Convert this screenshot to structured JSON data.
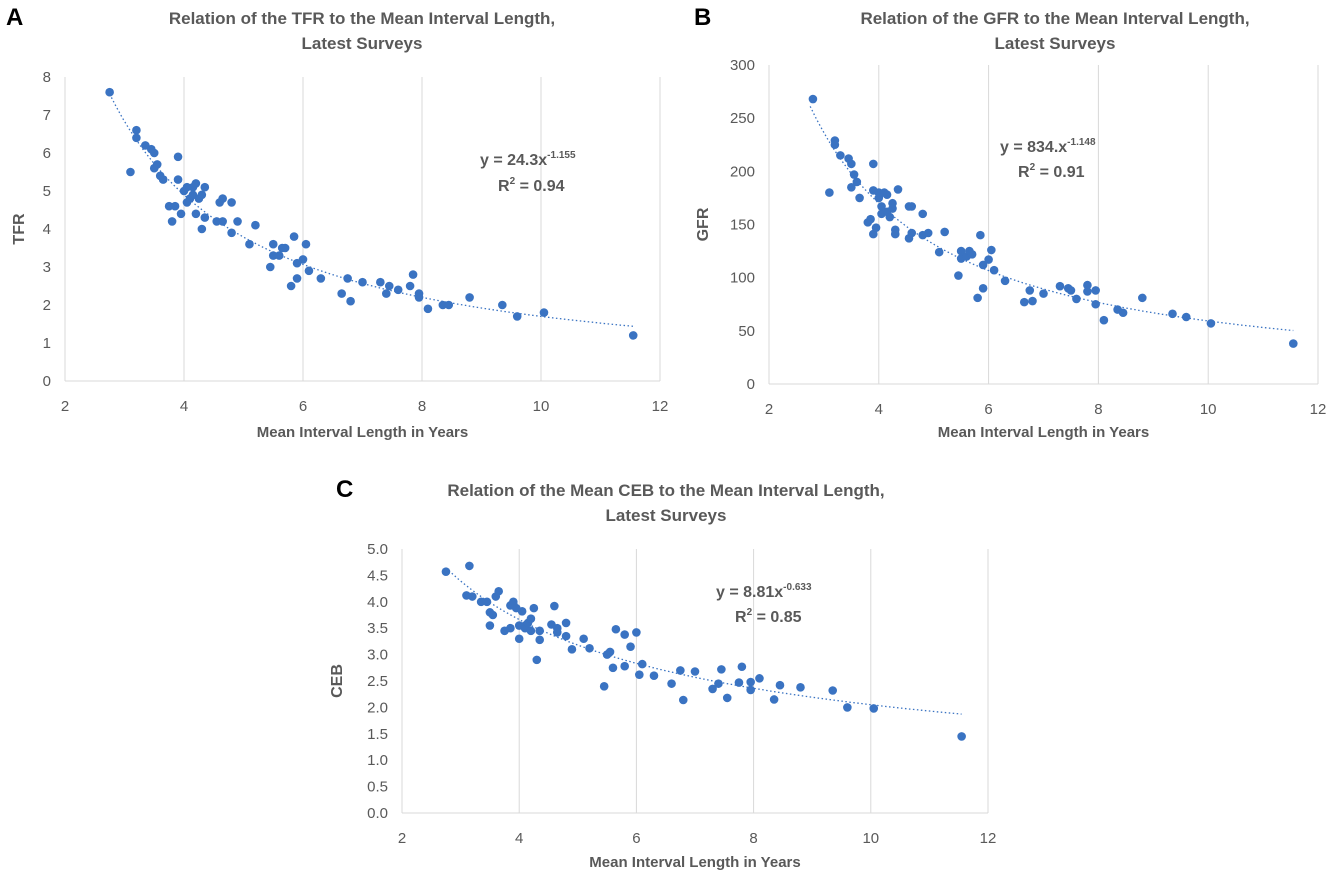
{
  "colors": {
    "marker": "#3a73c2",
    "grid": "#d9d9d9",
    "text": "#595959",
    "letter": "#000000"
  },
  "panels": [
    {
      "letter": "A",
      "title_line1": "Relation of the TFR to the Mean Interval Length,",
      "title_line2": "Latest Surveys",
      "eq_main": "y = 24.3x",
      "eq_exp": "-1.155",
      "r2_main": "R",
      "r2_sup": "2",
      "r2_rest": " = 0.94"
    },
    {
      "letter": "B",
      "title_line1": "Relation of the GFR to the Mean Interval Length,",
      "title_line2": "Latest Surveys",
      "eq_main": "y = 834.x",
      "eq_exp": "-1.148",
      "r2_main": "R",
      "r2_sup": "2",
      "r2_rest": " = 0.91"
    },
    {
      "letter": "C",
      "title_line1": "Relation of the Mean CEB to the Mean Interval Length,",
      "title_line2": "Latest Surveys",
      "eq_main": "y = 8.81x",
      "eq_exp": "-0.633",
      "r2_main": "R",
      "r2_sup": "2",
      "r2_rest": " = 0.85"
    }
  ],
  "chart_data": [
    {
      "type": "scatter",
      "title": "Relation of the TFR to the Mean Interval Length, Latest Surveys",
      "xlabel": "Mean Interval Length in Years",
      "ylabel": "TFR",
      "xlim": [
        2,
        12
      ],
      "ylim": [
        0,
        8
      ],
      "xticks": [
        2,
        4,
        6,
        8,
        10,
        12
      ],
      "yticks": [
        0,
        1,
        2,
        3,
        4,
        5,
        6,
        7,
        8
      ],
      "ytick_labels": [
        "0",
        "1",
        "2",
        "3",
        "4",
        "5",
        "6",
        "7",
        "8"
      ],
      "grid": "vertical",
      "trendline": {
        "type": "power",
        "a": 24.3,
        "b": -1.155,
        "x_range": [
          2.75,
          11.55
        ],
        "equation": "y = 24.3x-1.155",
        "r2": "R2 = 0.94"
      },
      "points": [
        [
          2.75,
          7.6
        ],
        [
          3.1,
          5.5
        ],
        [
          3.2,
          6.4
        ],
        [
          3.2,
          6.6
        ],
        [
          3.35,
          6.2
        ],
        [
          3.45,
          6.1
        ],
        [
          3.5,
          6.0
        ],
        [
          3.5,
          5.6
        ],
        [
          3.55,
          5.7
        ],
        [
          3.6,
          5.4
        ],
        [
          3.65,
          5.3
        ],
        [
          3.75,
          4.6
        ],
        [
          3.8,
          4.2
        ],
        [
          3.85,
          4.6
        ],
        [
          3.9,
          5.3
        ],
        [
          3.9,
          5.9
        ],
        [
          3.95,
          4.4
        ],
        [
          4.0,
          5.0
        ],
        [
          4.05,
          4.7
        ],
        [
          4.05,
          5.1
        ],
        [
          4.1,
          4.8
        ],
        [
          4.15,
          4.9
        ],
        [
          4.15,
          5.1
        ],
        [
          4.2,
          4.4
        ],
        [
          4.2,
          5.2
        ],
        [
          4.25,
          4.8
        ],
        [
          4.3,
          4.0
        ],
        [
          4.3,
          4.9
        ],
        [
          4.35,
          4.3
        ],
        [
          4.35,
          5.1
        ],
        [
          4.55,
          4.2
        ],
        [
          4.6,
          4.7
        ],
        [
          4.65,
          4.2
        ],
        [
          4.65,
          4.8
        ],
        [
          4.8,
          3.9
        ],
        [
          4.8,
          4.7
        ],
        [
          4.9,
          4.2
        ],
        [
          5.1,
          3.6
        ],
        [
          5.2,
          4.1
        ],
        [
          5.45,
          3.0
        ],
        [
          5.5,
          3.3
        ],
        [
          5.5,
          3.6
        ],
        [
          5.6,
          3.3
        ],
        [
          5.65,
          3.5
        ],
        [
          5.7,
          3.5
        ],
        [
          5.8,
          2.5
        ],
        [
          5.85,
          3.8
        ],
        [
          5.9,
          2.7
        ],
        [
          5.9,
          3.1
        ],
        [
          6.0,
          3.2
        ],
        [
          6.05,
          3.6
        ],
        [
          6.1,
          2.9
        ],
        [
          6.3,
          2.7
        ],
        [
          6.65,
          2.3
        ],
        [
          6.75,
          2.7
        ],
        [
          6.8,
          2.1
        ],
        [
          7.0,
          2.6
        ],
        [
          7.3,
          2.6
        ],
        [
          7.4,
          2.3
        ],
        [
          7.45,
          2.5
        ],
        [
          7.6,
          2.4
        ],
        [
          7.8,
          2.5
        ],
        [
          7.85,
          2.8
        ],
        [
          7.95,
          2.3
        ],
        [
          7.95,
          2.2
        ],
        [
          8.1,
          1.9
        ],
        [
          8.35,
          2.0
        ],
        [
          8.45,
          2.0
        ],
        [
          8.8,
          2.2
        ],
        [
          9.35,
          2.0
        ],
        [
          9.6,
          1.7
        ],
        [
          10.05,
          1.8
        ],
        [
          11.55,
          1.2
        ]
      ]
    },
    {
      "type": "scatter",
      "title": "Relation of the GFR to the Mean Interval Length, Latest Surveys",
      "xlabel": "Mean Interval Length in Years",
      "ylabel": "GFR",
      "xlim": [
        2,
        12
      ],
      "ylim": [
        0,
        300
      ],
      "xticks": [
        2,
        4,
        6,
        8,
        10,
        12
      ],
      "yticks": [
        0,
        50,
        100,
        150,
        200,
        250,
        300
      ],
      "ytick_labels": [
        "0",
        "50",
        "100",
        "150",
        "200",
        "250",
        "300"
      ],
      "grid": "vertical",
      "trendline": {
        "type": "power",
        "a": 834,
        "b": -1.148,
        "x_range": [
          2.75,
          11.55
        ],
        "equation": "y = 834.x-1.148",
        "r2": "R2 = 0.91"
      },
      "points": [
        [
          2.8,
          268
        ],
        [
          3.1,
          180
        ],
        [
          3.2,
          229
        ],
        [
          3.2,
          225
        ],
        [
          3.3,
          215
        ],
        [
          3.45,
          212
        ],
        [
          3.5,
          185
        ],
        [
          3.5,
          207
        ],
        [
          3.55,
          197
        ],
        [
          3.6,
          190
        ],
        [
          3.65,
          175
        ],
        [
          3.8,
          152
        ],
        [
          3.85,
          155
        ],
        [
          3.9,
          141
        ],
        [
          3.9,
          182
        ],
        [
          3.9,
          207
        ],
        [
          3.95,
          147
        ],
        [
          4.0,
          175
        ],
        [
          4.0,
          180
        ],
        [
          4.05,
          160
        ],
        [
          4.05,
          167
        ],
        [
          4.1,
          180
        ],
        [
          4.15,
          162
        ],
        [
          4.15,
          178
        ],
        [
          4.2,
          157
        ],
        [
          4.25,
          165
        ],
        [
          4.25,
          170
        ],
        [
          4.3,
          145
        ],
        [
          4.3,
          141
        ],
        [
          4.35,
          183
        ],
        [
          4.55,
          137
        ],
        [
          4.55,
          167
        ],
        [
          4.6,
          167
        ],
        [
          4.6,
          142
        ],
        [
          4.8,
          140
        ],
        [
          4.8,
          160
        ],
        [
          4.9,
          142
        ],
        [
          5.1,
          124
        ],
        [
          5.2,
          143
        ],
        [
          5.45,
          102
        ],
        [
          5.5,
          118
        ],
        [
          5.5,
          125
        ],
        [
          5.6,
          120
        ],
        [
          5.65,
          125
        ],
        [
          5.7,
          122
        ],
        [
          5.8,
          81
        ],
        [
          5.85,
          140
        ],
        [
          5.9,
          90
        ],
        [
          5.9,
          112
        ],
        [
          6.0,
          117
        ],
        [
          6.05,
          126
        ],
        [
          6.1,
          107
        ],
        [
          6.3,
          97
        ],
        [
          6.65,
          77
        ],
        [
          6.75,
          88
        ],
        [
          6.8,
          78
        ],
        [
          7.0,
          85
        ],
        [
          7.3,
          92
        ],
        [
          7.45,
          90
        ],
        [
          7.5,
          88
        ],
        [
          7.6,
          80
        ],
        [
          7.8,
          87
        ],
        [
          7.8,
          93
        ],
        [
          7.95,
          75
        ],
        [
          7.95,
          88
        ],
        [
          8.1,
          60
        ],
        [
          8.35,
          70
        ],
        [
          8.45,
          67
        ],
        [
          8.8,
          81
        ],
        [
          9.35,
          66
        ],
        [
          9.6,
          63
        ],
        [
          10.05,
          57
        ],
        [
          11.55,
          38
        ]
      ]
    },
    {
      "type": "scatter",
      "title": "Relation of the Mean CEB to the Mean Interval Length, Latest Surveys",
      "xlabel": "Mean Interval Length in Years",
      "ylabel": "CEB",
      "xlim": [
        2,
        12
      ],
      "ylim": [
        0,
        5
      ],
      "xticks": [
        2,
        4,
        6,
        8,
        10,
        12
      ],
      "yticks": [
        0,
        0.5,
        1,
        1.5,
        2,
        2.5,
        3,
        3.5,
        4,
        4.5,
        5
      ],
      "ytick_labels": [
        "0.0",
        "0.5",
        "1.0",
        "1.5",
        "2.0",
        "2.5",
        "3.0",
        "3.5",
        "4.0",
        "4.5",
        "5.0"
      ],
      "grid": "vertical",
      "trendline": {
        "type": "power",
        "a": 8.81,
        "b": -0.633,
        "x_range": [
          2.75,
          11.55
        ],
        "equation": "y = 8.81x-0.633",
        "r2": "R2 = 0.85"
      },
      "points": [
        [
          2.75,
          4.57
        ],
        [
          3.1,
          4.12
        ],
        [
          3.15,
          4.68
        ],
        [
          3.2,
          4.1
        ],
        [
          3.35,
          4.0
        ],
        [
          3.45,
          4.0
        ],
        [
          3.5,
          3.55
        ],
        [
          3.5,
          3.8
        ],
        [
          3.55,
          3.75
        ],
        [
          3.6,
          4.1
        ],
        [
          3.65,
          4.2
        ],
        [
          3.75,
          3.45
        ],
        [
          3.85,
          3.93
        ],
        [
          3.85,
          3.5
        ],
        [
          3.9,
          4.0
        ],
        [
          3.9,
          3.95
        ],
        [
          3.95,
          3.88
        ],
        [
          4.0,
          3.3
        ],
        [
          4.0,
          3.55
        ],
        [
          4.05,
          3.82
        ],
        [
          4.1,
          3.55
        ],
        [
          4.1,
          3.5
        ],
        [
          4.15,
          3.6
        ],
        [
          4.2,
          3.45
        ],
        [
          4.2,
          3.68
        ],
        [
          4.25,
          3.88
        ],
        [
          4.3,
          2.9
        ],
        [
          4.35,
          3.28
        ],
        [
          4.35,
          3.45
        ],
        [
          4.55,
          3.57
        ],
        [
          4.6,
          3.92
        ],
        [
          4.65,
          3.42
        ],
        [
          4.65,
          3.5
        ],
        [
          4.8,
          3.6
        ],
        [
          4.8,
          3.35
        ],
        [
          4.9,
          3.1
        ],
        [
          5.1,
          3.3
        ],
        [
          5.2,
          3.12
        ],
        [
          5.45,
          2.4
        ],
        [
          5.5,
          3.0
        ],
        [
          5.55,
          3.05
        ],
        [
          5.6,
          2.75
        ],
        [
          5.65,
          3.48
        ],
        [
          5.8,
          3.38
        ],
        [
          5.8,
          2.78
        ],
        [
          5.9,
          3.15
        ],
        [
          6.0,
          3.42
        ],
        [
          6.05,
          2.62
        ],
        [
          6.1,
          2.82
        ],
        [
          6.3,
          2.6
        ],
        [
          6.6,
          2.45
        ],
        [
          6.75,
          2.7
        ],
        [
          6.8,
          2.14
        ],
        [
          7.0,
          2.68
        ],
        [
          7.3,
          2.35
        ],
        [
          7.4,
          2.45
        ],
        [
          7.45,
          2.72
        ],
        [
          7.55,
          2.18
        ],
        [
          7.75,
          2.47
        ],
        [
          7.8,
          2.77
        ],
        [
          7.95,
          2.33
        ],
        [
          7.95,
          2.48
        ],
        [
          8.1,
          2.55
        ],
        [
          8.35,
          2.15
        ],
        [
          8.45,
          2.42
        ],
        [
          8.8,
          2.38
        ],
        [
          9.35,
          2.32
        ],
        [
          9.6,
          2.0
        ],
        [
          10.05,
          1.98
        ],
        [
          11.55,
          1.45
        ]
      ]
    }
  ]
}
